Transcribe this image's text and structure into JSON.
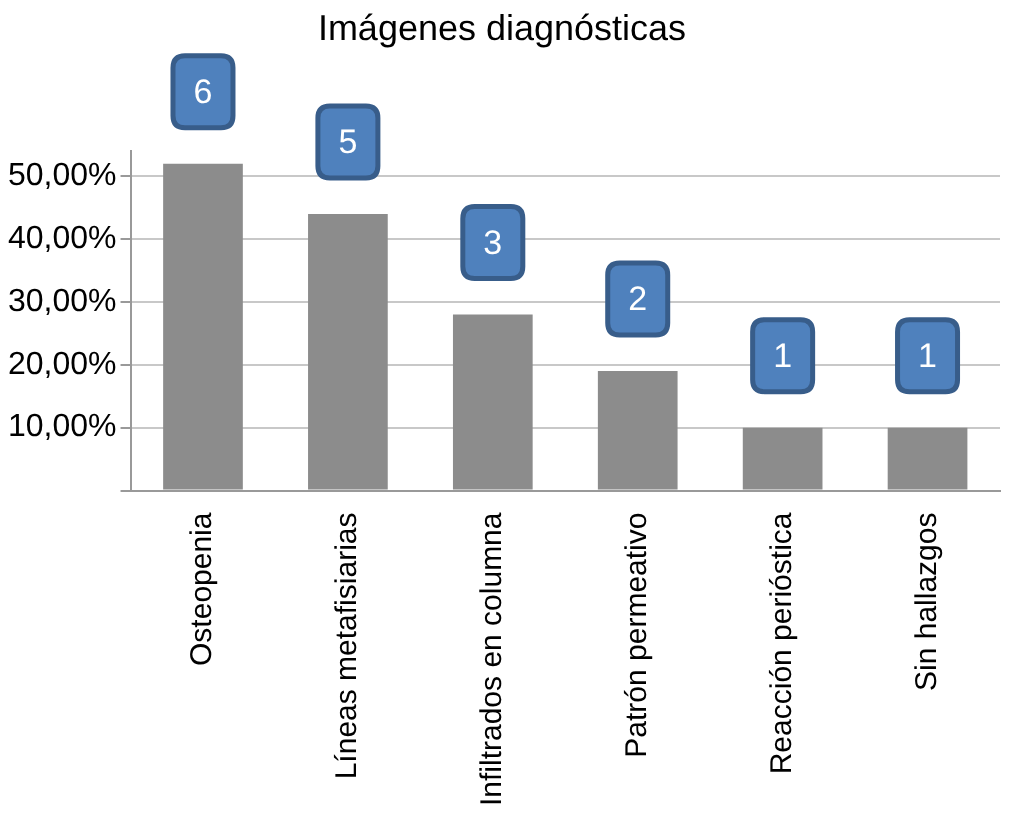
{
  "chart_data": {
    "type": "bar",
    "title": "Imágenes diagnósticas",
    "categories": [
      "Osteopenia",
      "Líneas metafisiarias",
      "Infiltrados en columna",
      "Patrón permeativo",
      "Reacción perióstica",
      "Sin hallazgos"
    ],
    "values": [
      52,
      44,
      28,
      19,
      10,
      10
    ],
    "annotations": [
      {
        "text": "6",
        "x": "Osteopenia",
        "y": 52
      },
      {
        "text": "5",
        "x": "Líneas metafisiarias",
        "y": 44
      },
      {
        "text": "3",
        "x": "Infiltrados en columna",
        "y": 28
      },
      {
        "text": "2",
        "x": "Patrón permeativo",
        "y": 19
      },
      {
        "text": "1",
        "x": "Reacción perióstica",
        "y": 10
      },
      {
        "text": "1",
        "x": "Sin hallazgos",
        "y": 10
      }
    ],
    "color": "#8c8c8c",
    "ylim": [
      0,
      54
    ],
    "yticks": [
      {
        "value": 0,
        "label": null
      },
      {
        "value": 10,
        "label": "10,00%"
      },
      {
        "value": 20,
        "label": "20,00%"
      },
      {
        "value": 30,
        "label": "30,00%"
      },
      {
        "value": 40,
        "label": "40,00%"
      },
      {
        "value": 50,
        "label": "50,00%"
      }
    ],
    "grid": "y",
    "legend": false
  }
}
